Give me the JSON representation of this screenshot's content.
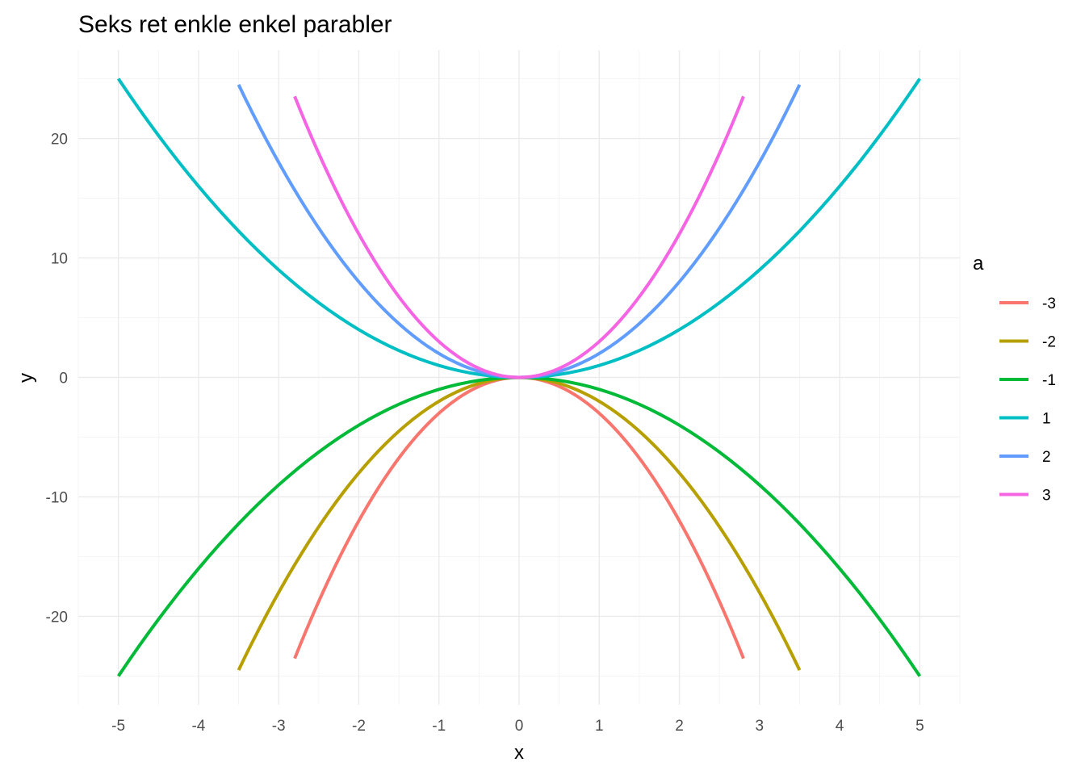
{
  "chart_data": {
    "type": "line",
    "title": "Seks ret enkle enkel parabler",
    "xlabel": "x",
    "ylabel": "y",
    "xlim": [
      -5.5,
      5.5
    ],
    "ylim": [
      -27.4,
      27.4
    ],
    "x_ticks": [
      -5,
      -4,
      -3,
      -2,
      -1,
      0,
      1,
      2,
      3,
      4,
      5
    ],
    "y_ticks": [
      -20,
      -10,
      0,
      10,
      20
    ],
    "grid": true,
    "legend": {
      "title": "a",
      "position": "right"
    },
    "function": "y = a * x^2",
    "series": [
      {
        "name": "-3",
        "a": -3,
        "x_range": [
          -2.8,
          2.8
        ],
        "color": "#F8766D"
      },
      {
        "name": "-2",
        "a": -2,
        "x_range": [
          -3.5,
          3.5
        ],
        "color": "#B79F00"
      },
      {
        "name": "-1",
        "a": -1,
        "x_range": [
          -5,
          5
        ],
        "color": "#00BA38"
      },
      {
        "name": "1",
        "a": 1,
        "x_range": [
          -5,
          5
        ],
        "color": "#00BFC4"
      },
      {
        "name": "2",
        "a": 2,
        "x_range": [
          -3.5,
          3.5
        ],
        "color": "#619CFF"
      },
      {
        "name": "3",
        "a": 3,
        "x_range": [
          -2.8,
          2.8
        ],
        "color": "#F564E3"
      }
    ]
  }
}
